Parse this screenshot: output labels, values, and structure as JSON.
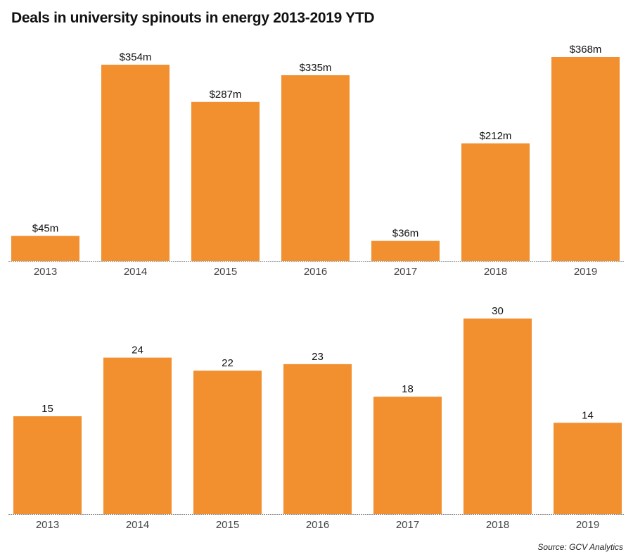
{
  "title": "Deals in university spinouts in energy 2013-2019 YTD",
  "source": "Source: GCV Analytics",
  "bar_color": "#F28F2F",
  "chart_data": [
    {
      "type": "bar",
      "categories": [
        "2013",
        "2014",
        "2015",
        "2016",
        "2017",
        "2018",
        "2019"
      ],
      "values": [
        45,
        354,
        287,
        335,
        36,
        212,
        368
      ],
      "data_labels": [
        "$45m",
        "$354m",
        "$287m",
        "$335m",
        "$36m",
        "$212m",
        "$368m"
      ],
      "ylim": [
        0,
        368
      ],
      "grid": false
    },
    {
      "type": "bar",
      "categories": [
        "2013",
        "2014",
        "2015",
        "2016",
        "2017",
        "2018",
        "2019"
      ],
      "values": [
        15,
        24,
        22,
        23,
        18,
        30,
        14
      ],
      "data_labels": [
        "15",
        "24",
        "22",
        "23",
        "18",
        "30",
        "14"
      ],
      "ylim": [
        0,
        30
      ],
      "grid": false
    }
  ]
}
